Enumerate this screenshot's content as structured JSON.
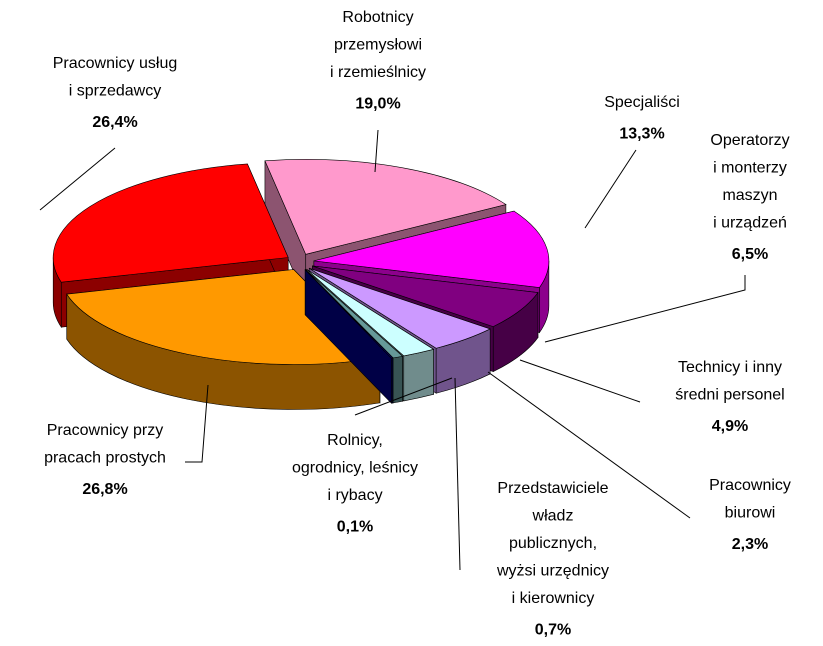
{
  "chart_data": {
    "type": "pie",
    "categories": [
      "Robotnicy\nprzemysłowi\ni rzemieślnicy",
      "Specjaliści",
      "Operatorzy\ni monterzy\nmaszyn\ni urządzeń",
      "Technicy i inny\nśredni personel",
      "Pracownicy\nbiurowi",
      "Przedstawiciele\nwładz\npublicznych,\nwyżsi urzędnicy\ni kierownicy",
      "Rolnicy,\nogrodnicy, leśnicy\ni rybacy",
      "Pracownicy przy\npracach prostych",
      "Pracownicy usług\ni sprzedawcy"
    ],
    "values": [
      19.0,
      13.3,
      6.5,
      4.9,
      2.3,
      0.7,
      0.1,
      26.8,
      26.4
    ],
    "value_labels": [
      "19,0%",
      "13,3%",
      "6,5%",
      "4,9%",
      "2,3%",
      "0,7%",
      "0,1%",
      "26,8%",
      "26,4%"
    ],
    "colors": [
      "#FF99CC",
      "#FF00FF",
      "#800080",
      "#CC99FF",
      "#CCFFFF",
      "#669999",
      "#000080",
      "#FF9900",
      "#FF0000"
    ]
  }
}
